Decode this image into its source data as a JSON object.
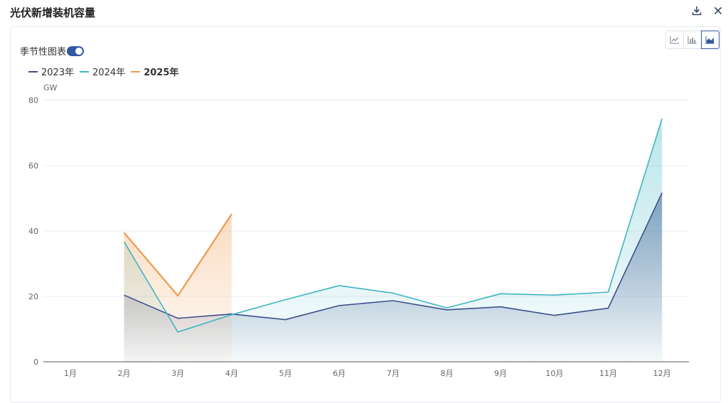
{
  "header": {
    "title": "光伏新增装机容量"
  },
  "toolbar": {
    "download_icon": "download-icon",
    "close_icon": "close-icon"
  },
  "controls": {
    "seasonal_label": "季节性图表",
    "seasonal_on": true,
    "chart_types": [
      "line-chart-icon",
      "bar-chart-icon",
      "area-chart-icon"
    ],
    "active_chart_type": "area-chart-icon"
  },
  "colors": {
    "s2023": "#3e4f8c",
    "s2024": "#3fb5c2",
    "s2025": "#ee9b4e",
    "accent": "#3358a3"
  },
  "chart_data": {
    "type": "area",
    "unit": "GW",
    "categories": [
      "1月",
      "2月",
      "3月",
      "4月",
      "5月",
      "6月",
      "7月",
      "8月",
      "9月",
      "10月",
      "11月",
      "12月"
    ],
    "series": [
      {
        "name": "2023年",
        "values": [
          null,
          20.4,
          13.3,
          14.6,
          12.9,
          17.2,
          18.7,
          15.9,
          16.8,
          14.2,
          16.4,
          51.7
        ]
      },
      {
        "name": "2024年",
        "values": [
          null,
          36.7,
          9.1,
          14.4,
          19.0,
          23.3,
          21.0,
          16.5,
          20.8,
          20.4,
          21.3,
          74.4
        ]
      },
      {
        "name": "2025年",
        "values": [
          null,
          39.5,
          20.2,
          45.2,
          null,
          null,
          null,
          null,
          null,
          null,
          null,
          null
        ]
      }
    ],
    "ylim": [
      0,
      80
    ],
    "yticks": [
      0,
      20,
      40,
      60,
      80
    ],
    "grid": true,
    "legend_position": "top-left"
  }
}
